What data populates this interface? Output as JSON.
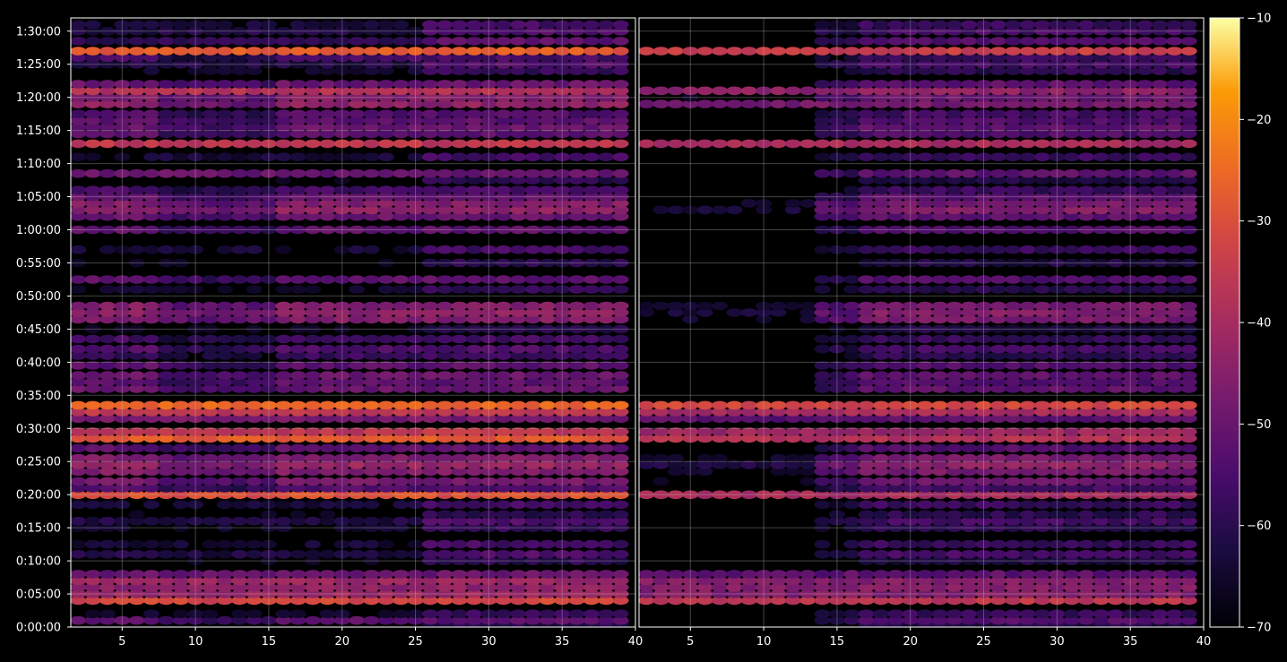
{
  "colors": {
    "background": "#000000",
    "axis": "#ffffff",
    "grid": "#bfbfbf"
  },
  "chart_data": [
    {
      "panel": "left",
      "type": "heatmap",
      "description_of_marks": "rows of elliptical markers; color = level (dB)",
      "xlim": [
        1.5,
        40
      ],
      "ylim_seconds": [
        0,
        5520
      ],
      "x_ticks": [
        "5",
        "10",
        "15",
        "20",
        "25",
        "30",
        "35",
        "40"
      ],
      "x_tick_values": [
        5,
        10,
        15,
        20,
        25,
        30,
        35,
        40
      ],
      "y_ticks": [
        "0:00:00",
        "0:05:00",
        "0:10:00",
        "0:15:00",
        "0:20:00",
        "0:25:00",
        "0:30:00",
        "0:35:00",
        "0:40:00",
        "0:45:00",
        "0:50:00",
        "0:55:00",
        "1:00:00",
        "1:05:00",
        "1:10:00",
        "1:15:00",
        "1:20:00",
        "1:25:00",
        "1:30:00"
      ],
      "grid": true,
      "rows": [
        {
          "t": "0:00:30",
          "v": -62,
          "d": 2
        },
        {
          "t": "0:01:00",
          "v": -52,
          "d": 1
        },
        {
          "t": "0:02:00",
          "v": -58,
          "d": 2
        },
        {
          "t": "0:04:00",
          "v": -32,
          "d": 0
        },
        {
          "t": "0:05:00",
          "v": -42,
          "d": 0
        },
        {
          "t": "0:06:00",
          "v": -44,
          "d": 0
        },
        {
          "t": "0:07:00",
          "v": -42,
          "d": 0
        },
        {
          "t": "0:08:00",
          "v": -50,
          "d": 0
        },
        {
          "t": "0:10:00",
          "v": -60,
          "d": 2
        },
        {
          "t": "0:11:00",
          "v": -54,
          "d": 2
        },
        {
          "t": "0:12:30",
          "v": -56,
          "d": 2
        },
        {
          "t": "0:15:00",
          "v": -58,
          "d": 2
        },
        {
          "t": "0:16:00",
          "v": -54,
          "d": 2
        },
        {
          "t": "0:17:00",
          "v": -60,
          "d": 2
        },
        {
          "t": "0:18:30",
          "v": -56,
          "d": 2
        },
        {
          "t": "0:20:00",
          "v": -30,
          "d": 0
        },
        {
          "t": "0:21:00",
          "v": -54,
          "d": 1
        },
        {
          "t": "0:22:00",
          "v": -48,
          "d": 1
        },
        {
          "t": "0:23:30",
          "v": -46,
          "d": 1
        },
        {
          "t": "0:24:30",
          "v": -42,
          "d": 1
        },
        {
          "t": "0:25:30",
          "v": -46,
          "d": 1
        },
        {
          "t": "0:27:00",
          "v": -52,
          "d": 1
        },
        {
          "t": "0:28:30",
          "v": -28,
          "d": 0
        },
        {
          "t": "0:29:30",
          "v": -36,
          "d": 0
        },
        {
          "t": "0:31:30",
          "v": -48,
          "d": 0
        },
        {
          "t": "0:32:30",
          "v": -36,
          "d": 0
        },
        {
          "t": "0:33:30",
          "v": -26,
          "d": 0
        },
        {
          "t": "0:36:00",
          "v": -50,
          "d": 1
        },
        {
          "t": "0:37:00",
          "v": -52,
          "d": 1
        },
        {
          "t": "0:38:00",
          "v": -50,
          "d": 1
        },
        {
          "t": "0:39:30",
          "v": -52,
          "d": 1
        },
        {
          "t": "0:41:00",
          "v": -58,
          "d": 1
        },
        {
          "t": "0:42:00",
          "v": -54,
          "d": 1
        },
        {
          "t": "0:43:30",
          "v": -56,
          "d": 1
        },
        {
          "t": "0:45:00",
          "v": -60,
          "d": 2
        },
        {
          "t": "0:46:30",
          "v": -46,
          "d": 1
        },
        {
          "t": "0:47:30",
          "v": -44,
          "d": 1
        },
        {
          "t": "0:48:30",
          "v": -46,
          "d": 1
        },
        {
          "t": "0:51:00",
          "v": -58,
          "d": 2
        },
        {
          "t": "0:52:30",
          "v": -52,
          "d": 1
        },
        {
          "t": "0:55:00",
          "v": -60,
          "d": 2
        },
        {
          "t": "0:57:00",
          "v": -56,
          "d": 2
        },
        {
          "t": "1:00:00",
          "v": -52,
          "d": 1
        },
        {
          "t": "1:02:00",
          "v": -50,
          "d": 1
        },
        {
          "t": "1:03:00",
          "v": -44,
          "d": 1
        },
        {
          "t": "1:04:00",
          "v": -46,
          "d": 1
        },
        {
          "t": "1:05:00",
          "v": -50,
          "d": 1
        },
        {
          "t": "1:06:00",
          "v": -56,
          "d": 1
        },
        {
          "t": "1:07:30",
          "v": -60,
          "d": 2
        },
        {
          "t": "1:08:30",
          "v": -50,
          "d": 0
        },
        {
          "t": "1:11:00",
          "v": -56,
          "d": 2
        },
        {
          "t": "1:13:00",
          "v": -36,
          "d": 0
        },
        {
          "t": "1:14:30",
          "v": -52,
          "d": 1
        },
        {
          "t": "1:15:30",
          "v": -50,
          "d": 1
        },
        {
          "t": "1:16:30",
          "v": -52,
          "d": 1
        },
        {
          "t": "1:17:30",
          "v": -54,
          "d": 1
        },
        {
          "t": "1:19:00",
          "v": -44,
          "d": 1
        },
        {
          "t": "1:20:00",
          "v": -46,
          "d": 1
        },
        {
          "t": "1:21:00",
          "v": -38,
          "d": 0
        },
        {
          "t": "1:22:00",
          "v": -50,
          "d": 1
        },
        {
          "t": "1:24:00",
          "v": -58,
          "d": 2
        },
        {
          "t": "1:25:00",
          "v": -54,
          "d": 2
        },
        {
          "t": "1:26:00",
          "v": -56,
          "d": 1
        },
        {
          "t": "1:27:00",
          "v": -28,
          "d": 0
        },
        {
          "t": "1:28:30",
          "v": -52,
          "d": 2
        },
        {
          "t": "1:30:00",
          "v": -54,
          "d": 2
        },
        {
          "t": "1:31:00",
          "v": -56,
          "d": 2
        }
      ]
    },
    {
      "panel": "right",
      "type": "heatmap",
      "description_of_marks": "rows of elliptical markers; color = level (dB)",
      "xlim": [
        1.5,
        40
      ],
      "ylim_seconds": [
        0,
        5520
      ],
      "x_ticks": [
        "5",
        "10",
        "15",
        "20",
        "25",
        "30",
        "35",
        "40"
      ],
      "x_tick_values": [
        5,
        10,
        15,
        20,
        25,
        30,
        35,
        40
      ],
      "grid": true,
      "rows": [
        {
          "t": "0:00:30",
          "v": -62,
          "d": 3
        },
        {
          "t": "0:01:00",
          "v": -54,
          "d": 3
        },
        {
          "t": "0:02:00",
          "v": -58,
          "d": 3
        },
        {
          "t": "0:04:00",
          "v": -36,
          "d": 0
        },
        {
          "t": "0:05:00",
          "v": -46,
          "d": 0
        },
        {
          "t": "0:06:00",
          "v": -46,
          "d": 0
        },
        {
          "t": "0:07:00",
          "v": -46,
          "d": 0
        },
        {
          "t": "0:08:00",
          "v": -52,
          "d": 0
        },
        {
          "t": "0:10:00",
          "v": -62,
          "d": 3
        },
        {
          "t": "0:11:00",
          "v": -56,
          "d": 3
        },
        {
          "t": "0:12:30",
          "v": -58,
          "d": 3
        },
        {
          "t": "0:15:00",
          "v": -60,
          "d": 3
        },
        {
          "t": "0:16:00",
          "v": -56,
          "d": 3
        },
        {
          "t": "0:17:00",
          "v": -60,
          "d": 3
        },
        {
          "t": "0:18:30",
          "v": -58,
          "d": 3
        },
        {
          "t": "0:20:00",
          "v": -40,
          "d": 0
        },
        {
          "t": "0:21:00",
          "v": -56,
          "d": 3
        },
        {
          "t": "0:22:00",
          "v": -50,
          "d": 3
        },
        {
          "t": "0:23:30",
          "v": -48,
          "d": 3
        },
        {
          "t": "0:24:30",
          "v": -44,
          "d": 3
        },
        {
          "t": "0:25:30",
          "v": -48,
          "d": 3
        },
        {
          "t": "0:27:00",
          "v": -54,
          "d": 3
        },
        {
          "t": "0:28:30",
          "v": -38,
          "d": 0
        },
        {
          "t": "0:29:30",
          "v": -42,
          "d": 0
        },
        {
          "t": "0:31:30",
          "v": -52,
          "d": 0
        },
        {
          "t": "0:32:30",
          "v": -40,
          "d": 0
        },
        {
          "t": "0:33:30",
          "v": -32,
          "d": 0
        },
        {
          "t": "0:36:00",
          "v": -52,
          "d": 3
        },
        {
          "t": "0:37:00",
          "v": -54,
          "d": 3
        },
        {
          "t": "0:38:00",
          "v": -52,
          "d": 3
        },
        {
          "t": "0:39:30",
          "v": -54,
          "d": 3
        },
        {
          "t": "0:41:00",
          "v": -60,
          "d": 3
        },
        {
          "t": "0:42:00",
          "v": -56,
          "d": 3
        },
        {
          "t": "0:43:30",
          "v": -58,
          "d": 3
        },
        {
          "t": "0:45:00",
          "v": -62,
          "d": 3
        },
        {
          "t": "0:46:30",
          "v": -48,
          "d": 3
        },
        {
          "t": "0:47:30",
          "v": -46,
          "d": 3
        },
        {
          "t": "0:48:30",
          "v": -48,
          "d": 3
        },
        {
          "t": "0:51:00",
          "v": -60,
          "d": 3
        },
        {
          "t": "0:52:30",
          "v": -54,
          "d": 3
        },
        {
          "t": "0:55:00",
          "v": -62,
          "d": 3
        },
        {
          "t": "0:57:00",
          "v": -58,
          "d": 3
        },
        {
          "t": "1:00:00",
          "v": -54,
          "d": 3
        },
        {
          "t": "1:02:00",
          "v": -52,
          "d": 3
        },
        {
          "t": "1:03:00",
          "v": -46,
          "d": 3
        },
        {
          "t": "1:04:00",
          "v": -48,
          "d": 3
        },
        {
          "t": "1:05:00",
          "v": -52,
          "d": 3
        },
        {
          "t": "1:06:00",
          "v": -58,
          "d": 3
        },
        {
          "t": "1:07:30",
          "v": -62,
          "d": 3
        },
        {
          "t": "1:08:30",
          "v": -52,
          "d": 3
        },
        {
          "t": "1:11:00",
          "v": -58,
          "d": 3
        },
        {
          "t": "1:13:00",
          "v": -40,
          "d": 0
        },
        {
          "t": "1:14:30",
          "v": -54,
          "d": 3
        },
        {
          "t": "1:15:30",
          "v": -52,
          "d": 3
        },
        {
          "t": "1:16:30",
          "v": -54,
          "d": 3
        },
        {
          "t": "1:17:30",
          "v": -56,
          "d": 3
        },
        {
          "t": "1:19:00",
          "v": -48,
          "d": 0
        },
        {
          "t": "1:20:00",
          "v": -50,
          "d": 3
        },
        {
          "t": "1:21:00",
          "v": -44,
          "d": 0
        },
        {
          "t": "1:22:00",
          "v": -52,
          "d": 3
        },
        {
          "t": "1:24:00",
          "v": -60,
          "d": 3
        },
        {
          "t": "1:25:00",
          "v": -56,
          "d": 3
        },
        {
          "t": "1:26:00",
          "v": -58,
          "d": 3
        },
        {
          "t": "1:27:00",
          "v": -34,
          "d": 0
        },
        {
          "t": "1:28:30",
          "v": -54,
          "d": 3
        },
        {
          "t": "1:30:00",
          "v": -56,
          "d": 3
        },
        {
          "t": "1:31:00",
          "v": -58,
          "d": 3
        }
      ]
    }
  ],
  "colorbar": {
    "colormap": "inferno",
    "range": [
      -70,
      -10
    ],
    "ticks": [
      "−10",
      "−20",
      "−30",
      "−40",
      "−50",
      "−60",
      "−70"
    ],
    "tick_values": [
      -10,
      -20,
      -30,
      -40,
      -50,
      -60,
      -70
    ]
  }
}
